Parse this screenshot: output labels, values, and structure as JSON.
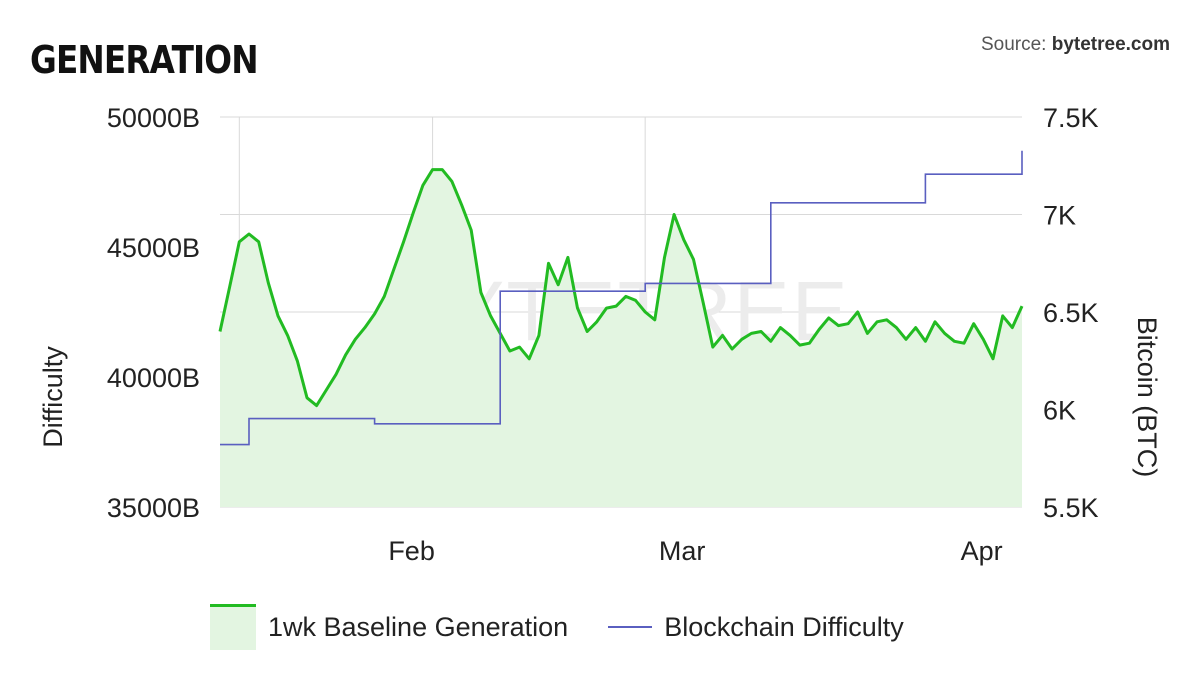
{
  "header": {
    "title": "GENERATION",
    "source_prefix": "Source: ",
    "source_name": "bytetree.com"
  },
  "watermark": "BYTETREE",
  "chart_data": {
    "type": "line",
    "title": "GENERATION",
    "x_tick_labels": [
      "Feb",
      "Mar",
      "Apr"
    ],
    "y_left": {
      "label": "Difficulty",
      "ticks": [
        "50000B",
        "45000B",
        "40000B",
        "35000B"
      ],
      "range": [
        35000,
        50000
      ],
      "unit": "B"
    },
    "y_right": {
      "label": "Bitcoin (BTC)",
      "ticks": [
        "7.5K",
        "7K",
        "6.5K",
        "6K",
        "5.5K"
      ],
      "range": [
        5500,
        7500
      ]
    },
    "grid": true,
    "legend_position": "bottom",
    "series": [
      {
        "name": "1wk Baseline Generation",
        "axis": "right",
        "style": "area",
        "color": "#22bb22",
        "fill": "#e3f5e1",
        "x": [
          "2019-01-13",
          "2019-01-14",
          "2019-01-15",
          "2019-01-16",
          "2019-01-17",
          "2019-01-18",
          "2019-01-19",
          "2019-01-20",
          "2019-01-21",
          "2019-01-22",
          "2019-01-23",
          "2019-01-24",
          "2019-01-25",
          "2019-01-26",
          "2019-01-27",
          "2019-01-28",
          "2019-01-29",
          "2019-01-30",
          "2019-01-31",
          "2019-02-01",
          "2019-02-02",
          "2019-02-03",
          "2019-02-04",
          "2019-02-05",
          "2019-02-06",
          "2019-02-07",
          "2019-02-08",
          "2019-02-09",
          "2019-02-10",
          "2019-02-11",
          "2019-02-12",
          "2019-02-13",
          "2019-02-14",
          "2019-02-15",
          "2019-02-16",
          "2019-02-17",
          "2019-02-18",
          "2019-02-19",
          "2019-02-20",
          "2019-02-21",
          "2019-02-22",
          "2019-02-23",
          "2019-02-24",
          "2019-02-25",
          "2019-02-26",
          "2019-02-27",
          "2019-02-28",
          "2019-03-01",
          "2019-03-02",
          "2019-03-03",
          "2019-03-04",
          "2019-03-05",
          "2019-03-06",
          "2019-03-07",
          "2019-03-08",
          "2019-03-09",
          "2019-03-10",
          "2019-03-11",
          "2019-03-12",
          "2019-03-13",
          "2019-03-14",
          "2019-03-15",
          "2019-03-16",
          "2019-03-17",
          "2019-03-18",
          "2019-03-19",
          "2019-03-20",
          "2019-03-21",
          "2019-03-22",
          "2019-03-23",
          "2019-03-24",
          "2019-03-25",
          "2019-03-26",
          "2019-03-27",
          "2019-03-28",
          "2019-03-29",
          "2019-03-30",
          "2019-03-31",
          "2019-04-01",
          "2019-04-02",
          "2019-04-03",
          "2019-04-04",
          "2019-04-05",
          "2019-04-06"
        ],
        "values": [
          6400,
          6630,
          6860,
          6900,
          6860,
          6650,
          6480,
          6380,
          6250,
          6060,
          6020,
          6100,
          6180,
          6280,
          6360,
          6420,
          6490,
          6580,
          6720,
          6860,
          7010,
          7150,
          7230,
          7230,
          7170,
          7050,
          6920,
          6600,
          6480,
          6390,
          6300,
          6320,
          6260,
          6380,
          6750,
          6640,
          6780,
          6520,
          6400,
          6450,
          6520,
          6530,
          6580,
          6560,
          6500,
          6460,
          6780,
          7000,
          6870,
          6770,
          6550,
          6320,
          6380,
          6310,
          6360,
          6390,
          6400,
          6350,
          6420,
          6380,
          6330,
          6340,
          6410,
          6470,
          6430,
          6440,
          6500,
          6390,
          6450,
          6460,
          6420,
          6360,
          6420,
          6350,
          6450,
          6390,
          6350,
          6340,
          6440,
          6360,
          6260,
          6480,
          6420,
          6530
        ]
      },
      {
        "name": "Blockchain Difficulty",
        "axis": "left",
        "style": "step",
        "color": "#5a5fc0",
        "x": [
          "2019-01-13",
          "2019-01-16",
          "2019-01-29",
          "2019-02-11",
          "2019-02-26",
          "2019-03-11",
          "2019-03-27",
          "2019-04-06"
        ],
        "values": [
          37400,
          38400,
          38200,
          43300,
          43600,
          46700,
          47800,
          48700
        ]
      }
    ]
  }
}
